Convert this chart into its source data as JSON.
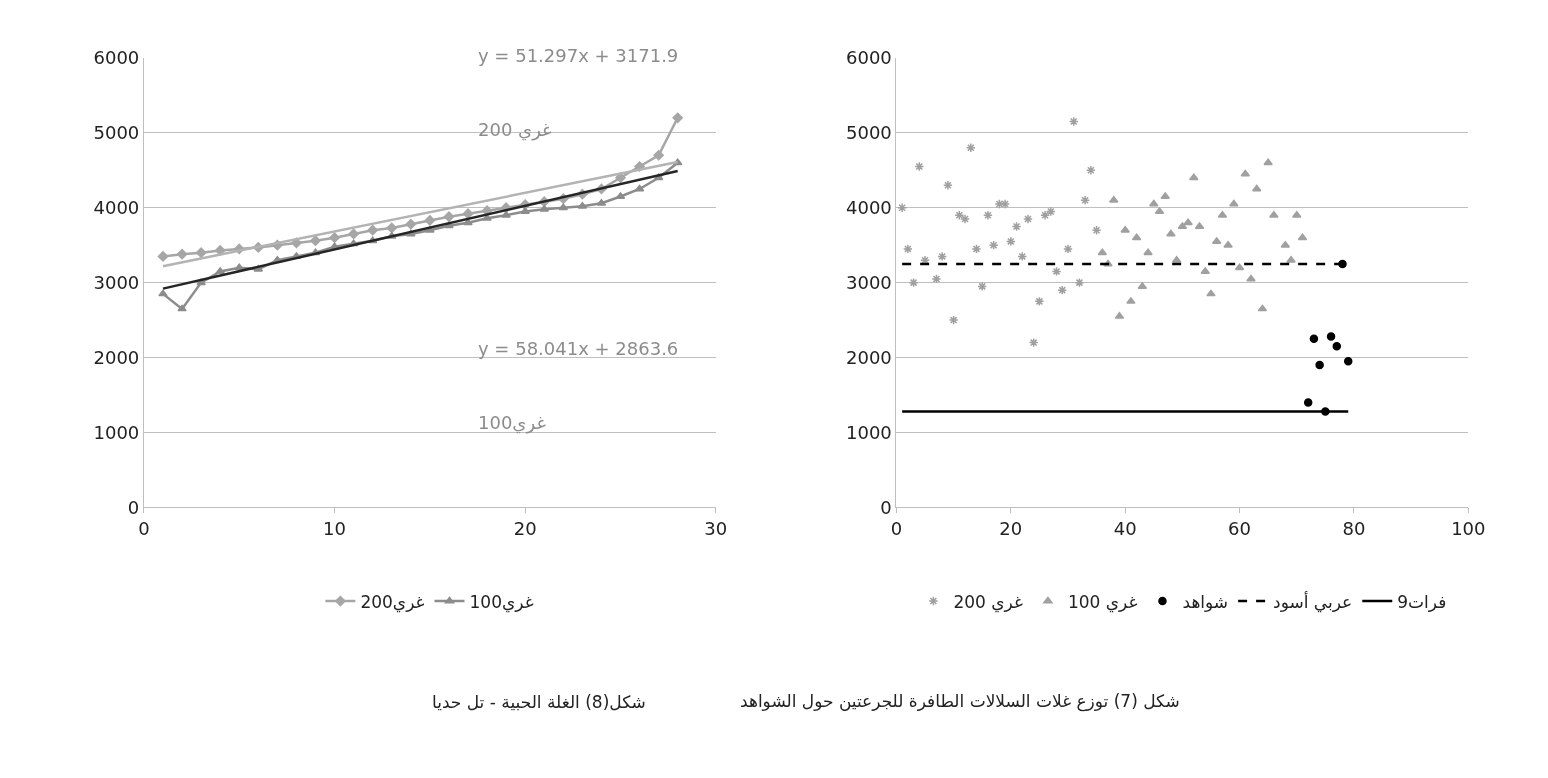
{
  "chart_data": [
    {
      "type": "line",
      "xlim": [
        0,
        30
      ],
      "xticks": [
        0,
        10,
        20,
        30
      ],
      "ylim": [
        0,
        6000
      ],
      "yticks": [
        0,
        1000,
        2000,
        3000,
        4000,
        5000,
        6000
      ],
      "grid": "y",
      "legend": "bottom",
      "line_style": "solid",
      "annotations": [
        "y = 51.297x + 3171.9",
        "200 غري",
        "y = 58.041x + 2863.6",
        "100غري",
        "شكل(8) الغلة الحبية - تل حديا"
      ],
      "x": [
        1,
        2,
        3,
        4,
        5,
        6,
        7,
        8,
        9,
        10,
        11,
        12,
        13,
        14,
        15,
        16,
        17,
        18,
        19,
        20,
        21,
        22,
        23,
        24,
        25,
        26,
        27,
        28
      ],
      "series": [
        {
          "name": "200غري",
          "color": "#a6a6a6",
          "marker": "diamond",
          "values": [
            3350,
            3380,
            3400,
            3430,
            3450,
            3470,
            3500,
            3530,
            3560,
            3600,
            3650,
            3700,
            3730,
            3780,
            3830,
            3880,
            3920,
            3960,
            4000,
            4040,
            4080,
            4120,
            4180,
            4250,
            4400,
            4550,
            4700,
            5200
          ]
        },
        {
          "name": "100غري",
          "color": "#8c8c8c",
          "marker": "triangle",
          "values": [
            2850,
            2650,
            3000,
            3150,
            3200,
            3180,
            3300,
            3350,
            3400,
            3480,
            3520,
            3560,
            3620,
            3650,
            3700,
            3760,
            3800,
            3860,
            3900,
            3950,
            3980,
            4000,
            4020,
            4060,
            4150,
            4250,
            4400,
            4600
          ]
        },
        {
          "color": "#b3b3b3",
          "marker": "none",
          "x": [
            1,
            28
          ],
          "values": [
            3220,
            4610
          ]
        },
        {
          "color": "#262626",
          "marker": "none",
          "x": [
            1,
            28
          ],
          "values": [
            2920,
            4490
          ]
        }
      ]
    },
    {
      "type": "scatter",
      "xlim": [
        0,
        100
      ],
      "xticks": [
        0,
        20,
        40,
        60,
        80,
        100
      ],
      "ylim": [
        0,
        6000
      ],
      "yticks": [
        0,
        1000,
        2000,
        3000,
        4000,
        5000,
        6000
      ],
      "grid": "y",
      "legend": "bottom",
      "annotations": [
        "شكل (7) توزع غلات السلالات الطافرة للجرعتين حول الشواهد"
      ],
      "series": [
        {
          "name": "200 غري",
          "color": "#a0a0a0",
          "marker": "cross",
          "x": [
            1,
            2,
            3,
            4,
            5,
            7,
            8,
            9,
            10,
            11,
            12,
            13,
            14,
            15,
            16,
            17,
            18,
            19,
            20,
            21,
            22,
            23,
            24,
            25,
            26,
            27,
            28,
            29,
            30,
            31,
            32,
            33,
            34,
            35
          ],
          "values": [
            4000,
            3450,
            3000,
            4550,
            3300,
            3050,
            3350,
            4300,
            2500,
            3900,
            3850,
            4800,
            3450,
            2950,
            3900,
            3500,
            4050,
            4050,
            3550,
            3750,
            3350,
            3850,
            2200,
            2750,
            3900,
            3950,
            3150,
            2900,
            3450,
            5150,
            3000,
            4100,
            4500,
            3700
          ]
        },
        {
          "name": "100 غري",
          "color": "#a0a0a0",
          "marker": "triangle",
          "x": [
            36,
            37,
            38,
            39,
            40,
            41,
            42,
            43,
            44,
            45,
            46,
            47,
            48,
            49,
            50,
            51,
            52,
            53,
            54,
            55,
            56,
            57,
            58,
            59,
            60,
            61,
            62,
            63,
            64,
            65,
            66,
            68,
            69,
            70,
            71
          ],
          "values": [
            3400,
            3250,
            4100,
            2550,
            3700,
            2750,
            3600,
            2950,
            3400,
            4050,
            3950,
            4150,
            3650,
            3300,
            3750,
            3800,
            4400,
            3750,
            3150,
            2850,
            3550,
            3900,
            3500,
            4050,
            3200,
            4450,
            3050,
            4250,
            2650,
            4600,
            3900,
            3500,
            3300,
            3900,
            3600
          ]
        },
        {
          "name": "شواهد",
          "color": "#000000",
          "marker": "circle",
          "x": [
            72,
            73,
            74,
            75,
            76,
            77,
            78,
            79
          ],
          "values": [
            1400,
            2250,
            1900,
            1280,
            2280,
            2150,
            3250,
            1950
          ]
        },
        {
          "name": "عربي أسود",
          "type": "line",
          "color": "#000000",
          "marker": "none",
          "line_style": "dashed",
          "x": [
            1,
            78
          ],
          "values": [
            3250,
            3250
          ]
        },
        {
          "name": "فرات9",
          "type": "line",
          "color": "#000000",
          "marker": "none",
          "line_style": "solid",
          "x": [
            1,
            79
          ],
          "values": [
            1280,
            1280
          ]
        }
      ]
    }
  ]
}
